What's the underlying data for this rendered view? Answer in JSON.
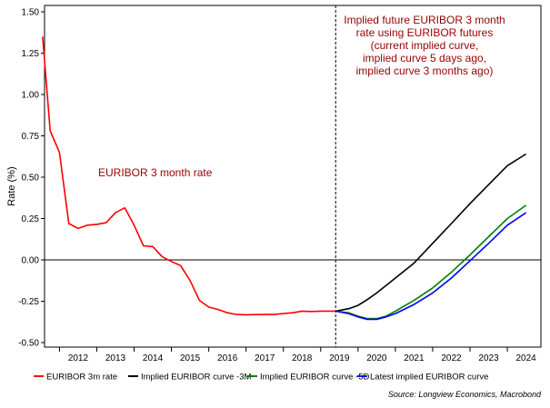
{
  "chart_data": {
    "type": "line",
    "ylabel": "Rate (%)",
    "ylim": [
      -0.5,
      1.5
    ],
    "yticks": [
      "1.50",
      "1.25",
      "1.00",
      "0.75",
      "0.50",
      "0.25",
      "0.00",
      "-0.25",
      "-0.50"
    ],
    "xticks": [
      "2012",
      "2013",
      "2014",
      "2015",
      "2016",
      "2017",
      "2018",
      "2019",
      "2020",
      "2021",
      "2022",
      "2023",
      "2024"
    ],
    "xlim": [
      2011.1,
      2024.4
    ],
    "grid": false,
    "legend_position": "bottom",
    "annotations": {
      "euribor_label": "EURIBOR 3 month rate",
      "future_label": [
        "Implied future EURIBOR 3 month",
        "rate using EURIBOR futures",
        "(current implied curve,",
        "implied curve 5 days ago,",
        "implied curve 3 months ago)"
      ]
    },
    "divider_x": 2018.9,
    "source": "Source: Longview Economics, Macrobond",
    "series": [
      {
        "name": "EURIBOR 3m rate",
        "color": "#ff0000",
        "points": [
          [
            2011.05,
            1.35
          ],
          [
            2011.25,
            0.78
          ],
          [
            2011.5,
            0.65
          ],
          [
            2011.75,
            0.22
          ],
          [
            2012.0,
            0.19
          ],
          [
            2012.25,
            0.21
          ],
          [
            2012.5,
            0.215
          ],
          [
            2012.75,
            0.225
          ],
          [
            2013.0,
            0.285
          ],
          [
            2013.25,
            0.315
          ],
          [
            2013.5,
            0.21
          ],
          [
            2013.75,
            0.085
          ],
          [
            2014.0,
            0.08
          ],
          [
            2014.25,
            0.02
          ],
          [
            2014.5,
            -0.01
          ],
          [
            2014.75,
            -0.035
          ],
          [
            2015.0,
            -0.125
          ],
          [
            2015.25,
            -0.245
          ],
          [
            2015.5,
            -0.285
          ],
          [
            2015.75,
            -0.3
          ],
          [
            2016.0,
            -0.32
          ],
          [
            2016.25,
            -0.33
          ],
          [
            2016.5,
            -0.332
          ],
          [
            2016.75,
            -0.331
          ],
          [
            2017.0,
            -0.33
          ],
          [
            2017.25,
            -0.33
          ],
          [
            2017.5,
            -0.325
          ],
          [
            2017.75,
            -0.32
          ],
          [
            2018.0,
            -0.31
          ],
          [
            2018.25,
            -0.312
          ],
          [
            2018.5,
            -0.31
          ],
          [
            2018.75,
            -0.31
          ],
          [
            2018.9,
            -0.31
          ]
        ]
      },
      {
        "name": "Implied EURIBOR curve -3M",
        "color": "#000000",
        "points": [
          [
            2018.9,
            -0.31
          ],
          [
            2019.25,
            -0.295
          ],
          [
            2019.5,
            -0.275
          ],
          [
            2019.75,
            -0.24
          ],
          [
            2020.0,
            -0.2
          ],
          [
            2020.5,
            -0.11
          ],
          [
            2021.0,
            -0.02
          ],
          [
            2021.5,
            0.1
          ],
          [
            2022.0,
            0.22
          ],
          [
            2022.5,
            0.34
          ],
          [
            2023.0,
            0.455
          ],
          [
            2023.5,
            0.57
          ],
          [
            2024.0,
            0.64
          ]
        ]
      },
      {
        "name": "Implied EURIBOR curve -5D",
        "color": "#008000",
        "points": [
          [
            2018.9,
            -0.31
          ],
          [
            2019.25,
            -0.32
          ],
          [
            2019.5,
            -0.34
          ],
          [
            2019.75,
            -0.355
          ],
          [
            2020.0,
            -0.355
          ],
          [
            2020.25,
            -0.34
          ],
          [
            2020.5,
            -0.31
          ],
          [
            2021.0,
            -0.245
          ],
          [
            2021.5,
            -0.17
          ],
          [
            2022.0,
            -0.075
          ],
          [
            2022.5,
            0.03
          ],
          [
            2023.0,
            0.14
          ],
          [
            2023.5,
            0.25
          ],
          [
            2024.0,
            0.33
          ]
        ]
      },
      {
        "name": "Latest implied EURIBOR curve",
        "color": "#0000ff",
        "points": [
          [
            2018.9,
            -0.31
          ],
          [
            2019.25,
            -0.325
          ],
          [
            2019.5,
            -0.345
          ],
          [
            2019.75,
            -0.36
          ],
          [
            2020.0,
            -0.36
          ],
          [
            2020.25,
            -0.345
          ],
          [
            2020.5,
            -0.325
          ],
          [
            2021.0,
            -0.27
          ],
          [
            2021.5,
            -0.2
          ],
          [
            2022.0,
            -0.11
          ],
          [
            2022.5,
            -0.005
          ],
          [
            2023.0,
            0.1
          ],
          [
            2023.5,
            0.21
          ],
          [
            2024.0,
            0.285
          ]
        ]
      }
    ]
  }
}
